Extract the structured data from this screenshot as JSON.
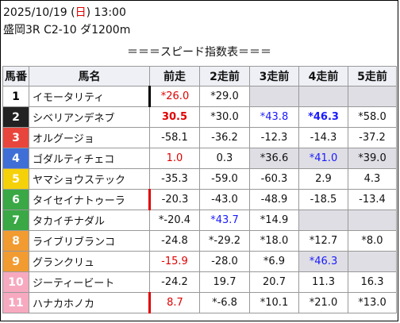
{
  "header": {
    "date_prefix": "2025/10/19 (",
    "weekday": "日",
    "date_suffix": ") 13:00",
    "race": "盛岡3R C2-10 ダ1200m",
    "subtitle": "＝＝＝スピード指数表＝＝＝"
  },
  "columns": [
    "馬番",
    "馬名",
    "前走",
    "2走前",
    "3走前",
    "4走前",
    "5走前"
  ],
  "rows": [
    {
      "num": "1",
      "name": "イモータリティ",
      "bg": "#ffffff",
      "fg": "#000000",
      "mark": "black",
      "cells": [
        {
          "v": "*26.0",
          "c": "red"
        },
        {
          "v": "*29.0",
          "c": ""
        },
        {
          "v": "",
          "c": "blank"
        },
        {
          "v": "",
          "c": "blank"
        },
        {
          "v": "",
          "c": "blank"
        }
      ]
    },
    {
      "num": "2",
      "name": "シベリアンデネブ",
      "bg": "#222222",
      "fg": "#ffffff",
      "mark": "",
      "cells": [
        {
          "v": "30.5",
          "c": "redb"
        },
        {
          "v": "*30.0",
          "c": ""
        },
        {
          "v": "*43.8",
          "c": "blue"
        },
        {
          "v": "*46.3",
          "c": "blueb"
        },
        {
          "v": "*58.0",
          "c": ""
        }
      ]
    },
    {
      "num": "3",
      "name": "オルグージョ",
      "bg": "#e8453c",
      "fg": "#ffffff",
      "mark": "",
      "cells": [
        {
          "v": "-58.1",
          "c": ""
        },
        {
          "v": "-36.2",
          "c": ""
        },
        {
          "v": "-12.3",
          "c": ""
        },
        {
          "v": "-14.3",
          "c": ""
        },
        {
          "v": "-37.2",
          "c": ""
        }
      ]
    },
    {
      "num": "4",
      "name": "ゴダルティチェコ",
      "bg": "#3f6fd6",
      "fg": "#ffffff",
      "mark": "",
      "cells": [
        {
          "v": "1.0",
          "c": "red"
        },
        {
          "v": "0.3",
          "c": ""
        },
        {
          "v": "*36.6",
          "c": "hl"
        },
        {
          "v": "*41.0",
          "c": "bluehl"
        },
        {
          "v": "*39.0",
          "c": "hl"
        }
      ]
    },
    {
      "num": "5",
      "name": "ヤマショウステック",
      "bg": "#f5d10a",
      "fg": "#ffffff",
      "mark": "",
      "cells": [
        {
          "v": "-35.3",
          "c": ""
        },
        {
          "v": "-59.0",
          "c": ""
        },
        {
          "v": "-60.3",
          "c": ""
        },
        {
          "v": "2.9",
          "c": ""
        },
        {
          "v": "4.3",
          "c": ""
        }
      ]
    },
    {
      "num": "6",
      "name": "タイセイナトゥーラ",
      "bg": "#39a845",
      "fg": "#ffffff",
      "mark": "red",
      "cells": [
        {
          "v": "-20.3",
          "c": ""
        },
        {
          "v": "-43.0",
          "c": ""
        },
        {
          "v": "-48.9",
          "c": ""
        },
        {
          "v": "-18.5",
          "c": ""
        },
        {
          "v": "-13.4",
          "c": ""
        }
      ]
    },
    {
      "num": "7",
      "name": "タカイチナダル",
      "bg": "#39a845",
      "fg": "#ffffff",
      "mark": "",
      "cells": [
        {
          "v": "*-20.4",
          "c": ""
        },
        {
          "v": "*43.7",
          "c": "blue"
        },
        {
          "v": "*14.9",
          "c": ""
        },
        {
          "v": "",
          "c": "blank"
        },
        {
          "v": "",
          "c": "blank"
        }
      ]
    },
    {
      "num": "8",
      "name": "ライブリブランコ",
      "bg": "#f29b30",
      "fg": "#ffffff",
      "mark": "",
      "cells": [
        {
          "v": "-24.8",
          "c": ""
        },
        {
          "v": "*-29.2",
          "c": ""
        },
        {
          "v": "*18.0",
          "c": ""
        },
        {
          "v": "*12.7",
          "c": ""
        },
        {
          "v": "*8.0",
          "c": ""
        }
      ]
    },
    {
      "num": "9",
      "name": "グランクリュ",
      "bg": "#f29b30",
      "fg": "#ffffff",
      "mark": "",
      "cells": [
        {
          "v": "-15.9",
          "c": "red"
        },
        {
          "v": "-28.0",
          "c": ""
        },
        {
          "v": "*6.9",
          "c": ""
        },
        {
          "v": "*46.3",
          "c": "bluehl"
        },
        {
          "v": "",
          "c": "blank"
        }
      ]
    },
    {
      "num": "10",
      "name": "ジーティービート",
      "bg": "#f7a9c0",
      "fg": "#ffffff",
      "mark": "",
      "cells": [
        {
          "v": "-24.2",
          "c": ""
        },
        {
          "v": "19.7",
          "c": ""
        },
        {
          "v": "20.7",
          "c": ""
        },
        {
          "v": "11.3",
          "c": ""
        },
        {
          "v": "16.3",
          "c": ""
        }
      ]
    },
    {
      "num": "11",
      "name": "ハナカホノカ",
      "bg": "#f7a9c0",
      "fg": "#ffffff",
      "mark": "red",
      "cells": [
        {
          "v": "8.7",
          "c": "red"
        },
        {
          "v": "*-6.8",
          "c": ""
        },
        {
          "v": "*10.1",
          "c": ""
        },
        {
          "v": "*21.0",
          "c": ""
        },
        {
          "v": "*13.0",
          "c": ""
        }
      ]
    }
  ]
}
